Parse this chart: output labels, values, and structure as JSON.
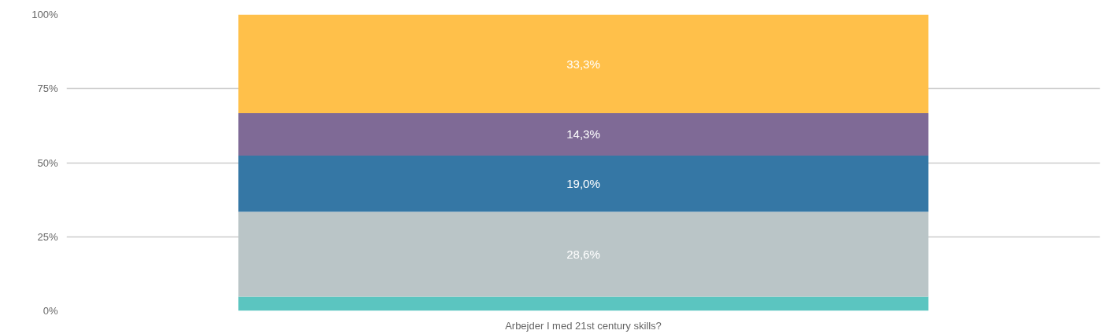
{
  "chart_data": {
    "type": "bar",
    "stacked": true,
    "categories": [
      "Arbejder I med 21st century skills?"
    ],
    "series": [
      {
        "color": "#5bc5c0",
        "values": [
          4.8
        ],
        "value_labels": [
          null
        ]
      },
      {
        "color": "#bac5c7",
        "values": [
          28.6
        ],
        "value_labels": [
          "28,6%"
        ]
      },
      {
        "color": "#3577a5",
        "values": [
          19.0
        ],
        "value_labels": [
          "19,0%"
        ]
      },
      {
        "color": "#7f6a96",
        "values": [
          14.3
        ],
        "value_labels": [
          "14,3%"
        ]
      },
      {
        "color": "#ffc04a",
        "values": [
          33.3
        ],
        "value_labels": [
          "33,3%"
        ]
      }
    ],
    "ylim": [
      0,
      100
    ],
    "yticks": [
      {
        "value": 0,
        "label": "0%"
      },
      {
        "value": 25,
        "label": "25%"
      },
      {
        "value": 50,
        "label": "50%"
      },
      {
        "value": 75,
        "label": "75%"
      },
      {
        "value": 100,
        "label": "100%"
      }
    ],
    "grid": "y"
  }
}
